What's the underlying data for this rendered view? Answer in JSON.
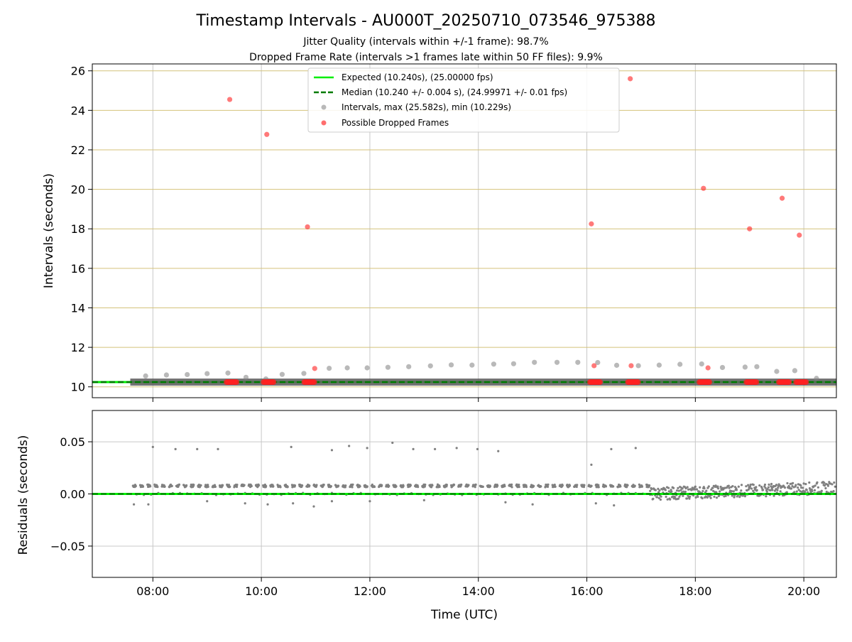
{
  "chart_data": [
    {
      "type": "scatter",
      "title": "Timestamp Intervals - AU000T_20250710_073546_975388",
      "subtitle": [
        "Jitter Quality (intervals within +/-1 frame): 98.7%",
        "Dropped Frame Rate (intervals >1 frames late within 50 FF files): 9.9%"
      ],
      "xlabel": "",
      "ylabel": "Intervals (seconds)",
      "xlim": [
        "06:53",
        "20:36"
      ],
      "ylim": [
        9.45,
        26.35
      ],
      "yticks": [
        "10",
        "12",
        "14",
        "16",
        "18",
        "20",
        "22",
        "24",
        "26"
      ],
      "grid": true,
      "legend_position": "top-center",
      "legend": [
        "Expected (10.240s), (25.00000 fps)",
        "Median (10.240 +/- 0.004 s), (24.99971 +/- 0.01 fps)",
        "Intervals, max (25.582s), min (10.229s)",
        "Possible Dropped Frames"
      ],
      "colors": {
        "expected": "#00ee00",
        "median": "#007a00",
        "intervals": "#808080",
        "dropped": "#ff2020",
        "hgrid": "#d4c27a",
        "vgrid": "#c8c8c8"
      },
      "expected_interval": 10.24,
      "median_interval": 10.24,
      "series": [
        {
          "name": "Intervals, max (25.582s), min (10.229s)",
          "x": [
            "07:52",
            "08:15",
            "08:38",
            "09:00",
            "09:23",
            "09:43",
            "10:05",
            "10:23",
            "10:47",
            "11:15",
            "11:35",
            "11:57",
            "12:20",
            "12:43",
            "13:07",
            "13:30",
            "13:53",
            "14:17",
            "14:39",
            "15:02",
            "15:27",
            "15:50",
            "16:12",
            "16:33",
            "16:57",
            "17:20",
            "17:43",
            "18:07",
            "18:30",
            "18:55",
            "19:08",
            "19:30",
            "19:50",
            "20:14"
          ],
          "y": [
            10.55,
            10.6,
            10.62,
            10.67,
            10.7,
            10.48,
            10.4,
            10.63,
            10.68,
            10.94,
            10.96,
            10.96,
            10.99,
            11.02,
            11.06,
            11.11,
            11.1,
            11.15,
            11.17,
            11.24,
            11.24,
            11.24,
            11.23,
            11.09,
            11.07,
            11.1,
            11.14,
            11.16,
            10.98,
            11.0,
            11.02,
            10.78,
            10.82,
            10.43
          ]
        },
        {
          "name": "Possible Dropped Frames",
          "x": [
            "09:25",
            "10:06",
            "10:51",
            "10:59",
            "16:05",
            "16:08",
            "16:48",
            "16:49",
            "18:09",
            "18:14",
            "19:00",
            "19:36",
            "19:55"
          ],
          "y": [
            24.55,
            22.78,
            18.1,
            10.93,
            18.25,
            11.07,
            25.6,
            11.07,
            20.05,
            10.96,
            18.0,
            19.55,
            17.68
          ]
        }
      ],
      "dropped_cluster_x": [
        "09:27",
        "10:08",
        "10:53",
        "16:09",
        "16:51",
        "18:10",
        "19:02",
        "19:38",
        "19:57"
      ],
      "baseline_range_x": [
        "07:35",
        "20:36"
      ],
      "baseline_value": 10.24
    },
    {
      "type": "scatter",
      "title": "",
      "xlabel": "Time (UTC)",
      "ylabel": "Residuals (seconds)",
      "xlim": [
        "06:53",
        "20:36"
      ],
      "ylim": [
        -0.08,
        0.08
      ],
      "xticks": [
        "08:00",
        "10:00",
        "12:00",
        "14:00",
        "16:00",
        "18:00",
        "20:00"
      ],
      "yticks": [
        "0.05",
        "0.00",
        "−0.05"
      ],
      "grid": true,
      "colors": {
        "points": "#808080",
        "zero_line": "#00ee00",
        "median_line": "#007a00"
      },
      "series": [
        {
          "name": "",
          "x": [
            "08:00",
            "08:25",
            "08:49",
            "09:12",
            "10:33",
            "11:18",
            "11:37",
            "11:57",
            "12:25",
            "12:48",
            "13:12",
            "13:36",
            "13:59",
            "14:22",
            "16:05",
            "16:27",
            "16:54"
          ],
          "y": [
            0.045,
            0.043,
            0.043,
            0.043,
            0.045,
            0.042,
            0.046,
            0.044,
            0.049,
            0.043,
            0.043,
            0.044,
            0.043,
            0.041,
            0.028,
            0.043,
            0.044
          ]
        },
        {
          "name": "",
          "x": [
            "07:39",
            "07:55",
            "09:00",
            "09:42",
            "10:07",
            "10:35",
            "10:58",
            "11:18",
            "12:00",
            "13:00",
            "14:30",
            "15:00",
            "16:10",
            "16:30"
          ],
          "y": [
            -0.01,
            -0.01,
            -0.007,
            -0.009,
            -0.01,
            -0.009,
            -0.012,
            -0.007,
            -0.007,
            -0.006,
            -0.008,
            -0.01,
            -0.009,
            -0.011
          ]
        }
      ]
    }
  ]
}
